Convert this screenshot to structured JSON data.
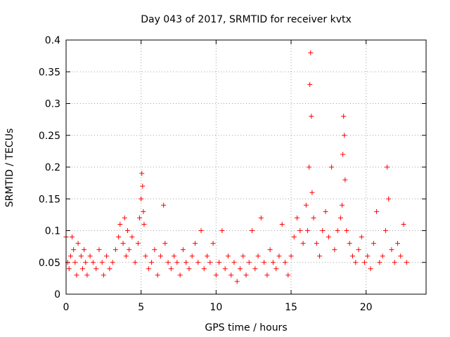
{
  "chart_data": {
    "type": "scatter",
    "title": "Day 043 of 2017, SRMTID for receiver kvtx",
    "xlabel": "GPS time / hours",
    "ylabel": "SRMTID / TECUs",
    "xlim": [
      0,
      24
    ],
    "ylim": [
      0,
      0.4
    ],
    "xticks": [
      0,
      5,
      10,
      15,
      20
    ],
    "xtick_labels": [
      "0",
      "5",
      "10",
      "15",
      "20"
    ],
    "yticks": [
      0,
      0.05,
      0.1,
      0.15,
      0.2,
      0.25,
      0.3,
      0.35,
      0.4
    ],
    "ytick_labels": [
      "0",
      "0.05",
      "0.1",
      "0.15",
      "0.2",
      "0.25",
      "0.3",
      "0.35",
      "0.4"
    ],
    "grid": true,
    "marker": "+",
    "series": [
      {
        "name": "SRMTID",
        "color": "#ff0000",
        "x": [
          0.0,
          0.1,
          0.2,
          0.3,
          0.4,
          0.5,
          0.6,
          0.7,
          0.8,
          1.0,
          1.1,
          1.2,
          1.3,
          1.4,
          1.6,
          1.8,
          2.0,
          2.2,
          2.4,
          2.5,
          2.7,
          2.9,
          3.1,
          3.3,
          3.5,
          3.6,
          3.8,
          3.9,
          4.0,
          4.1,
          4.2,
          4.4,
          4.6,
          4.8,
          4.9,
          5.0,
          5.05,
          5.1,
          5.15,
          5.2,
          5.3,
          5.5,
          5.7,
          5.9,
          6.1,
          6.3,
          6.5,
          6.6,
          6.8,
          7.0,
          7.2,
          7.4,
          7.6,
          7.8,
          8.0,
          8.2,
          8.4,
          8.6,
          8.8,
          9.0,
          9.2,
          9.4,
          9.6,
          9.8,
          10.0,
          10.2,
          10.4,
          10.6,
          10.8,
          11.0,
          11.2,
          11.4,
          11.6,
          11.8,
          12.0,
          12.2,
          12.4,
          12.6,
          12.8,
          13.0,
          13.2,
          13.4,
          13.6,
          13.8,
          14.0,
          14.2,
          14.4,
          14.6,
          14.8,
          15.0,
          15.2,
          15.4,
          15.6,
          15.8,
          16.0,
          16.1,
          16.2,
          16.25,
          16.3,
          16.35,
          16.4,
          16.5,
          16.7,
          16.9,
          17.1,
          17.3,
          17.5,
          17.7,
          17.9,
          18.1,
          18.3,
          18.4,
          18.45,
          18.5,
          18.55,
          18.6,
          18.7,
          18.9,
          19.1,
          19.3,
          19.5,
          19.7,
          19.9,
          20.1,
          20.3,
          20.5,
          20.7,
          20.9,
          21.1,
          21.3,
          21.4,
          21.5,
          21.7,
          21.9,
          22.1,
          22.3,
          22.5,
          22.7
        ],
        "y": [
          0.09,
          0.05,
          0.04,
          0.06,
          0.09,
          0.07,
          0.05,
          0.03,
          0.08,
          0.06,
          0.04,
          0.07,
          0.05,
          0.03,
          0.06,
          0.05,
          0.04,
          0.07,
          0.05,
          0.03,
          0.06,
          0.04,
          0.05,
          0.07,
          0.09,
          0.11,
          0.08,
          0.12,
          0.06,
          0.1,
          0.07,
          0.09,
          0.05,
          0.08,
          0.12,
          0.15,
          0.19,
          0.17,
          0.13,
          0.11,
          0.06,
          0.04,
          0.05,
          0.07,
          0.03,
          0.06,
          0.14,
          0.08,
          0.05,
          0.04,
          0.06,
          0.05,
          0.03,
          0.07,
          0.05,
          0.04,
          0.06,
          0.08,
          0.05,
          0.1,
          0.04,
          0.06,
          0.05,
          0.08,
          0.03,
          0.05,
          0.1,
          0.04,
          0.06,
          0.03,
          0.05,
          0.02,
          0.04,
          0.06,
          0.03,
          0.05,
          0.1,
          0.04,
          0.06,
          0.12,
          0.05,
          0.03,
          0.07,
          0.05,
          0.04,
          0.06,
          0.11,
          0.05,
          0.03,
          0.06,
          0.09,
          0.12,
          0.1,
          0.08,
          0.14,
          0.1,
          0.2,
          0.33,
          0.38,
          0.28,
          0.16,
          0.12,
          0.08,
          0.06,
          0.1,
          0.13,
          0.09,
          0.2,
          0.07,
          0.1,
          0.12,
          0.14,
          0.22,
          0.28,
          0.25,
          0.18,
          0.1,
          0.08,
          0.06,
          0.05,
          0.07,
          0.09,
          0.05,
          0.06,
          0.04,
          0.08,
          0.13,
          0.05,
          0.06,
          0.1,
          0.2,
          0.15,
          0.07,
          0.05,
          0.08,
          0.06,
          0.11,
          0.05
        ]
      }
    ]
  }
}
